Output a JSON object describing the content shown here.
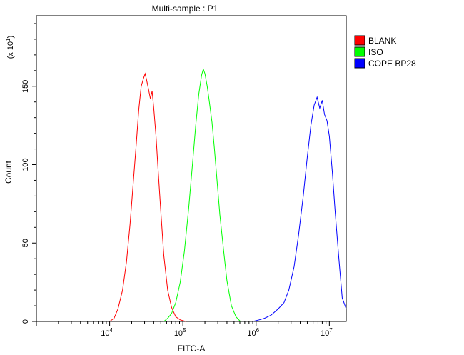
{
  "chart_data": {
    "type": "line",
    "title": "Multi-sample : P1",
    "xlabel": "FITC-A",
    "ylabel": "Count",
    "y_multiplier": "(x 10",
    "y_multiplier_exp": "1",
    "y_multiplier_close": ")",
    "x_scale": "log",
    "xlim": [
      1000,
      17000000
    ],
    "ylim": [
      0,
      195
    ],
    "x_ticks": [
      {
        "value": 10000,
        "base": "10",
        "exp": "4"
      },
      {
        "value": 100000,
        "base": "10",
        "exp": "5"
      },
      {
        "value": 1000000,
        "base": "10",
        "exp": "6"
      },
      {
        "value": 10000000,
        "base": "10",
        "exp": "7"
      }
    ],
    "y_ticks": [
      {
        "value": 0,
        "label": "0"
      },
      {
        "value": 50,
        "label": "50"
      },
      {
        "value": 100,
        "label": "100"
      },
      {
        "value": 150,
        "label": "150"
      }
    ],
    "grid": false,
    "legend_position": "top-right",
    "series": [
      {
        "name": "BLANK",
        "color": "#ff0000",
        "x": [
          10000,
          11500,
          13000,
          15000,
          17000,
          19000,
          21000,
          23000,
          25000,
          27000,
          29000,
          30500,
          32000,
          34000,
          36000,
          38000,
          40000,
          43000,
          46000,
          50000,
          55000,
          62000,
          70000,
          80000,
          92000,
          110000
        ],
        "y": [
          0,
          2,
          8,
          20,
          38,
          62,
          88,
          112,
          135,
          150,
          155,
          158,
          154,
          148,
          142,
          147,
          136,
          118,
          96,
          70,
          42,
          20,
          9,
          3,
          1,
          0
        ]
      },
      {
        "name": "ISO",
        "color": "#00ff00",
        "x": [
          55000,
          62000,
          70000,
          80000,
          92000,
          105000,
          120000,
          135000,
          150000,
          165000,
          180000,
          190000,
          200000,
          215000,
          230000,
          250000,
          270000,
          295000,
          320000,
          360000,
          400000,
          460000,
          530000,
          610000
        ],
        "y": [
          0,
          2,
          5,
          12,
          25,
          45,
          72,
          100,
          125,
          145,
          157,
          161,
          158,
          150,
          140,
          127,
          110,
          88,
          68,
          45,
          26,
          10,
          3,
          0
        ]
      },
      {
        "name": "COPE BP28",
        "color": "#0000ff",
        "x": [
          900000,
          1100000,
          1300000,
          1600000,
          2000000,
          2400000,
          2800000,
          3300000,
          3800000,
          4400000,
          5000000,
          5600000,
          6200000,
          6800000,
          7400000,
          8000000,
          8600000,
          9300000,
          10000000,
          11000000,
          12000000,
          13500000,
          15000000,
          17000000
        ],
        "y": [
          0,
          1,
          2,
          4,
          8,
          12,
          20,
          35,
          55,
          80,
          105,
          125,
          138,
          143,
          136,
          141,
          132,
          128,
          118,
          95,
          70,
          40,
          15,
          8
        ]
      }
    ]
  }
}
